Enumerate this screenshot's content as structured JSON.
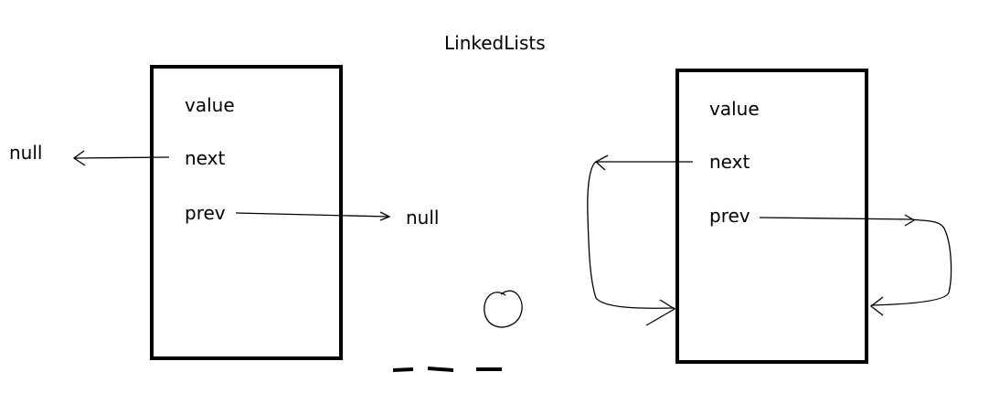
{
  "title": "LinkedLists",
  "colors": {
    "stroke": "#000000",
    "background": "#ffffff"
  },
  "left_node": {
    "fields": {
      "value": "value",
      "next": "next",
      "prev": "prev"
    },
    "next_target": "null",
    "prev_target": "null"
  },
  "right_node": {
    "fields": {
      "value": "value",
      "next": "next",
      "prev": "prev"
    }
  }
}
